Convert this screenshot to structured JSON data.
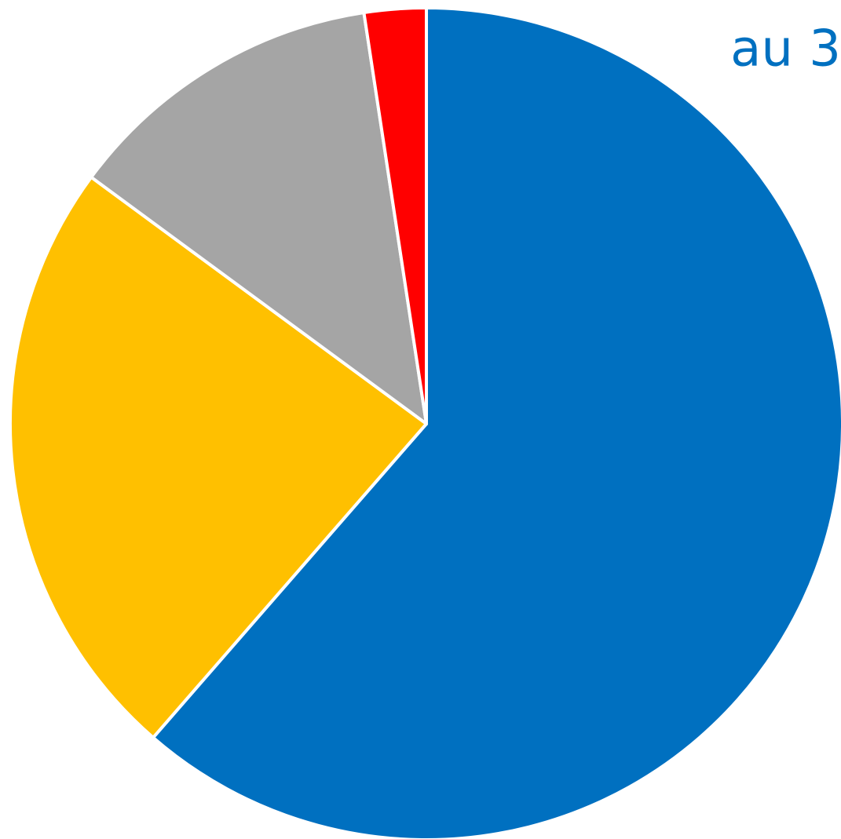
{
  "chart_data": {
    "type": "pie",
    "title": "au 3",
    "categories": [
      null,
      null,
      null,
      null
    ],
    "values": [
      61.4,
      23.7,
      12.5,
      2.4
    ],
    "colors": [
      "#0070c0",
      "#ffc000",
      "#a5a5a5",
      "#ff0000"
    ],
    "title_color": "#0070c0"
  }
}
